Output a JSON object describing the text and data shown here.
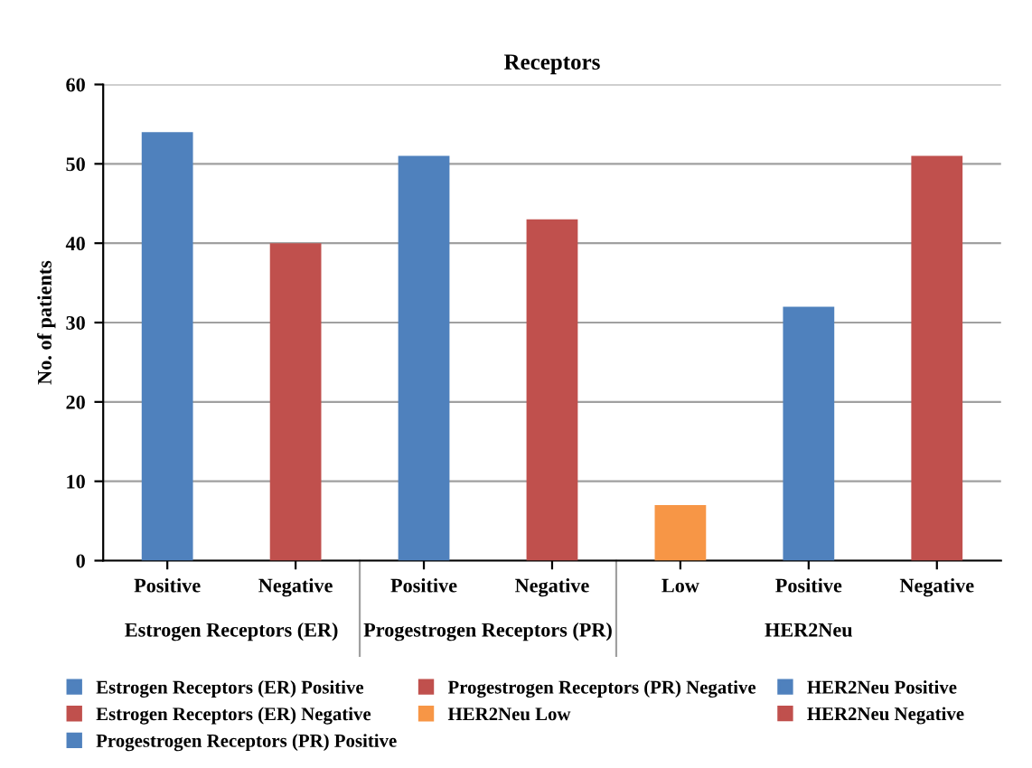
{
  "chart_data": {
    "type": "bar",
    "title": "Receptors",
    "ylabel": "No. of patients",
    "categories": [
      "Positive",
      "Negative",
      "Positive",
      "Negative",
      "Low",
      "Positive",
      "Negative"
    ],
    "annotations": [
      "Estrogen Receptors (ER)",
      "Progestrogen Receptors (PR)",
      "HER2Neu"
    ],
    "series": [
      {
        "name": "Estrogen Receptors (ER) Positive",
        "color": "#4f81bd",
        "values": [
          54,
          null,
          null,
          null,
          null,
          null,
          null
        ]
      },
      {
        "name": "Estrogen Receptors (ER) Negative",
        "color": "#c0504d",
        "values": [
          null,
          40,
          null,
          null,
          null,
          null,
          null
        ]
      },
      {
        "name": "Progestrogen Receptors (PR) Positive",
        "color": "#4f81bd",
        "values": [
          null,
          null,
          51,
          null,
          null,
          null,
          null
        ]
      },
      {
        "name": "Progestrogen Receptors (PR) Negative",
        "color": "#c0504d",
        "values": [
          null,
          null,
          null,
          43,
          null,
          null,
          null
        ]
      },
      {
        "name": "HER2Neu Low",
        "color": "#f79646",
        "values": [
          null,
          null,
          null,
          null,
          7,
          null,
          null
        ]
      },
      {
        "name": "HER2Neu Positive",
        "color": "#4f81bd",
        "values": [
          null,
          null,
          null,
          null,
          null,
          32,
          null
        ]
      },
      {
        "name": "HER2Neu Negative",
        "color": "#c0504d",
        "values": [
          null,
          null,
          null,
          null,
          null,
          null,
          51
        ]
      }
    ],
    "ylim": [
      0,
      60
    ],
    "yticks": [
      0,
      10,
      20,
      30,
      40,
      50,
      60
    ],
    "grid": "y",
    "legend": "bottom"
  }
}
